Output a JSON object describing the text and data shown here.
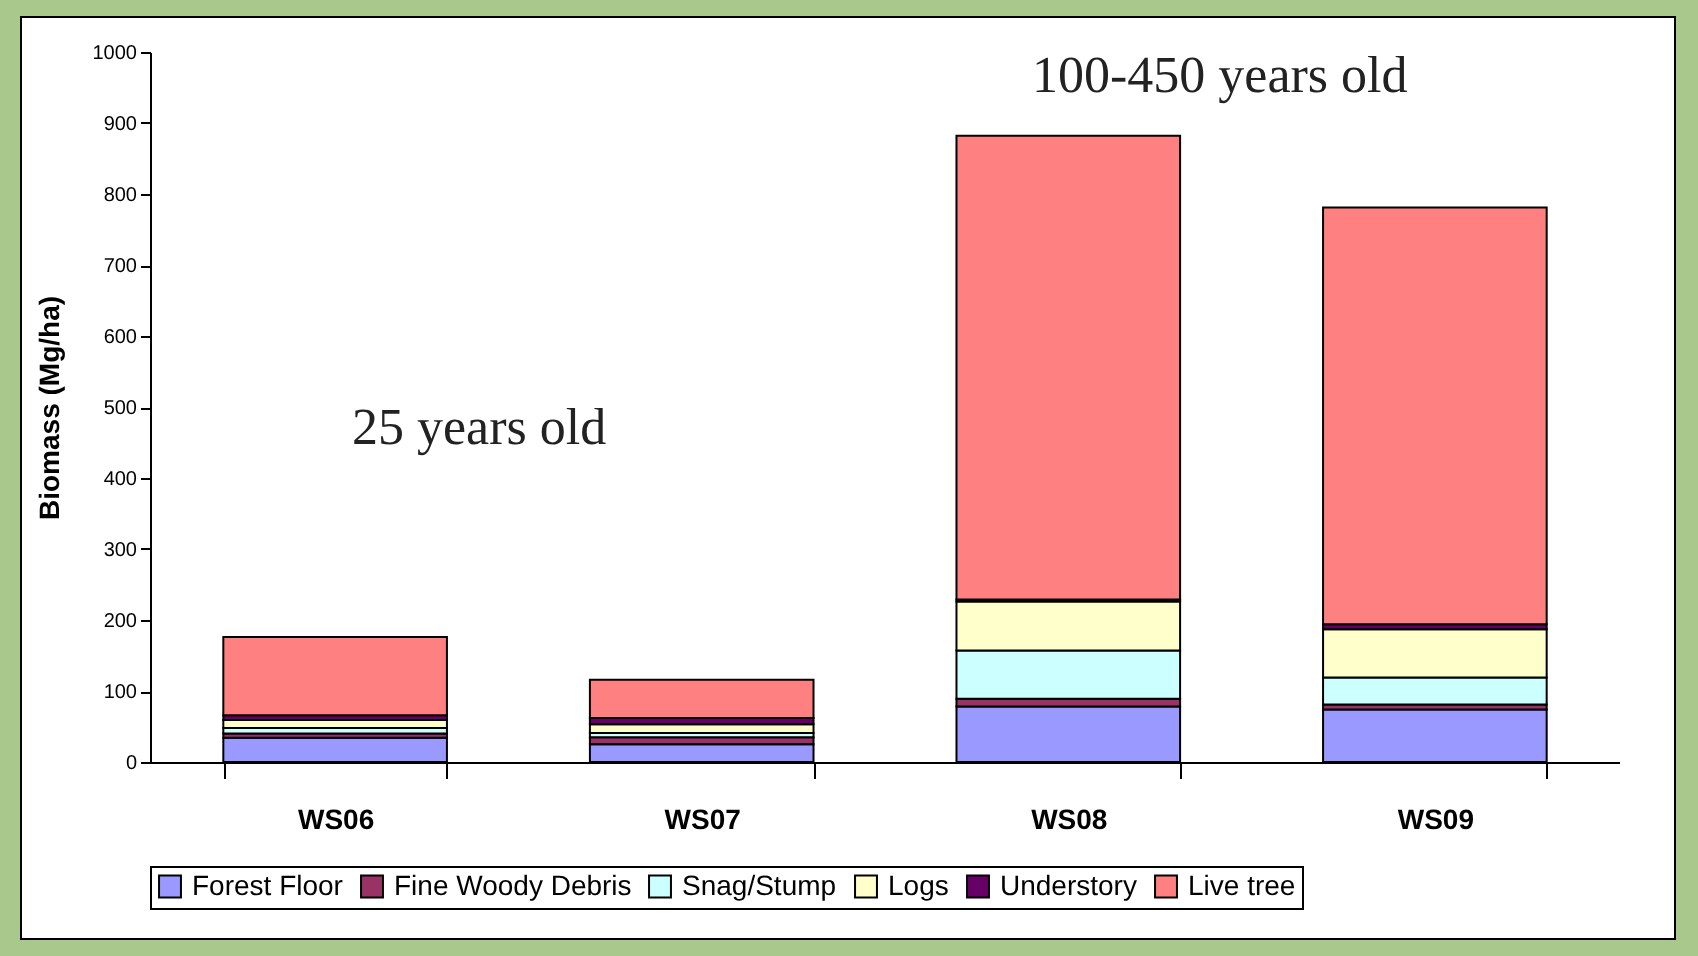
{
  "chart_data": {
    "type": "bar",
    "stacked": true,
    "ylabel": "Biomass (Mg/ha)",
    "categories": [
      "WS06",
      "WS07",
      "WS08",
      "WS09"
    ],
    "series": [
      {
        "name": "Forest Floor",
        "color": "#9999ff",
        "values": [
          34,
          25,
          78,
          74
        ]
      },
      {
        "name": "Fine Woody Debris",
        "color": "#993366",
        "values": [
          6,
          10,
          11,
          7
        ]
      },
      {
        "name": "Snag/Stump",
        "color": "#ccffff",
        "values": [
          8,
          6,
          68,
          38
        ]
      },
      {
        "name": "Logs",
        "color": "#ffffcc",
        "values": [
          11,
          12,
          69,
          68
        ]
      },
      {
        "name": "Understory",
        "color": "#660066",
        "values": [
          7,
          9,
          3,
          7
        ]
      },
      {
        "name": "Live tree",
        "color": "#ff8080",
        "values": [
          110,
          54,
          653,
          587
        ]
      }
    ],
    "ylim": [
      0,
      1000
    ],
    "yticks": [
      0,
      100,
      200,
      300,
      400,
      500,
      600,
      700,
      800,
      900,
      {
        "value": 1000,
        "label": "1000"
      }
    ],
    "grid": false,
    "legend": "bottom",
    "annotations": [
      "25 years old",
      "100-450 years old"
    ]
  }
}
